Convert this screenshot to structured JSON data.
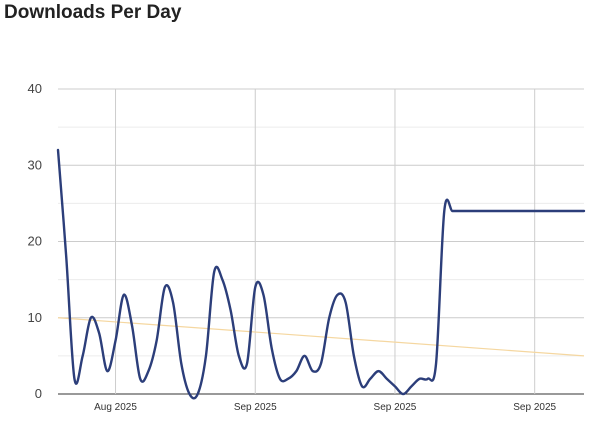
{
  "page_title": "Downloads Per Day",
  "chart_data": {
    "type": "line",
    "title": "Downloads Per Day",
    "xlabel": "",
    "ylabel": "",
    "ylim": [
      0,
      40
    ],
    "y_ticks": [
      "0",
      "10",
      "20",
      "30",
      "40"
    ],
    "x_tick_labels": [
      "Aug 2025",
      "Sep 2025",
      "Sep 2025",
      "Sep 2025"
    ],
    "x_range": [
      "2025-07-25",
      "2025-09-27"
    ],
    "x_ticks": [
      "2025-08-01",
      "2025-08-18",
      "2025-09-04",
      "2025-09-21"
    ],
    "grid": true,
    "series": [
      {
        "color": "#2c3e7a",
        "smooth": true,
        "x": [
          "2025-07-25",
          "2025-07-26",
          "2025-07-27",
          "2025-07-28",
          "2025-07-29",
          "2025-07-30",
          "2025-07-31",
          "2025-08-01",
          "2025-08-02",
          "2025-08-03",
          "2025-08-04",
          "2025-08-05",
          "2025-08-06",
          "2025-08-07",
          "2025-08-08",
          "2025-08-09",
          "2025-08-10",
          "2025-08-11",
          "2025-08-12",
          "2025-08-13",
          "2025-08-14",
          "2025-08-15",
          "2025-08-16",
          "2025-08-17",
          "2025-08-18",
          "2025-08-19",
          "2025-08-20",
          "2025-08-21",
          "2025-08-22",
          "2025-08-23",
          "2025-08-24",
          "2025-08-25",
          "2025-08-26",
          "2025-08-27",
          "2025-08-28",
          "2025-08-29",
          "2025-08-30",
          "2025-08-31",
          "2025-09-01",
          "2025-09-02",
          "2025-09-03",
          "2025-09-04",
          "2025-09-05",
          "2025-09-06",
          "2025-09-07",
          "2025-09-08",
          "2025-09-09",
          "2025-09-10",
          "2025-09-11",
          "2025-09-12",
          "2025-09-13",
          "2025-09-14",
          "2025-09-15",
          "2025-09-16",
          "2025-09-17",
          "2025-09-18",
          "2025-09-19",
          "2025-09-20",
          "2025-09-21",
          "2025-09-22",
          "2025-09-23",
          "2025-09-24",
          "2025-09-25",
          "2025-09-26",
          "2025-09-27"
        ],
        "y": [
          32,
          18,
          2,
          5,
          10,
          8,
          3,
          7,
          13,
          9,
          2,
          3,
          7,
          14,
          12,
          4,
          0,
          0,
          5,
          16,
          15,
          11,
          5,
          4,
          14,
          13,
          6,
          2,
          2,
          3,
          5,
          3,
          4,
          10,
          13,
          12,
          5,
          1,
          2,
          3,
          2,
          1,
          0,
          1,
          2,
          2,
          4,
          24,
          24,
          24,
          24,
          24,
          24,
          24,
          24,
          24,
          24,
          24,
          24,
          24,
          24,
          24,
          24,
          24,
          24
        ]
      },
      {
        "name": "",
        "type": "trend",
        "color": "#f5d7a0",
        "x": [
          "2025-07-25",
          "2025-09-27"
        ],
        "y": [
          10,
          5
        ]
      }
    ]
  }
}
